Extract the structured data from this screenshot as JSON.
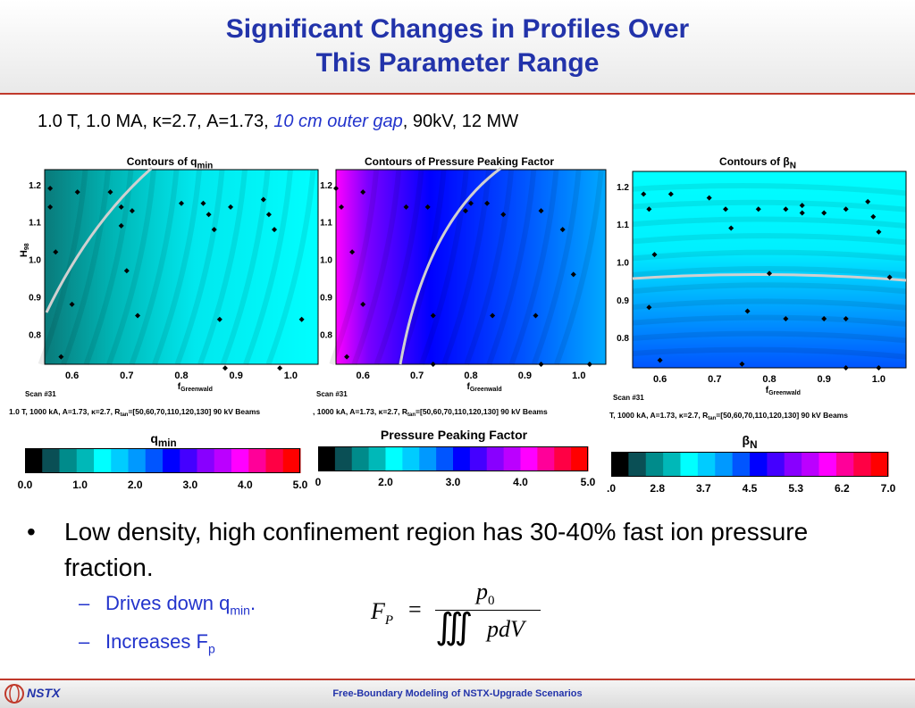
{
  "slide": {
    "title_line1": "Significant Changes in Profiles Over",
    "title_line2": "This Parameter Range",
    "subtitle_part1": "1.0 T, 1.0 MA, κ=2.7, A=1.73, ",
    "subtitle_italic": "10 cm outer gap",
    "subtitle_part2": ", 90kV, 12 MW"
  },
  "bullets": {
    "main": "Low density, high confinement region has 30-40% fast ion pressure fraction.",
    "sub1_text": "Drives down q",
    "sub1_sub": "min",
    "sub1_end": ".",
    "sub2_text": "Increases F",
    "sub2_sub": "p"
  },
  "formula": {
    "lhs": "F",
    "lhs_sub": "P",
    "equals": "=",
    "numerator": "p",
    "numerator_sub": "0",
    "denominator": "pdV",
    "integral": "∭"
  },
  "footer": {
    "text": "Free-Boundary Modeling of NSTX-Upgrade Scenarios",
    "logo_text": "NSTX"
  },
  "colors": {
    "title": "#2233aa",
    "accent_red": "#c0392b",
    "colorbar": [
      "#000000",
      "#0a4f55",
      "#008b8b",
      "#00b8b8",
      "#00ffff",
      "#00ccff",
      "#0099ff",
      "#0055ff",
      "#0000ff",
      "#4400ff",
      "#8800ff",
      "#bb00ff",
      "#ff00ff",
      "#ff0099",
      "#ff0044",
      "#ff0000"
    ]
  },
  "chart_data": [
    {
      "type": "heatmap",
      "title_main": "Contours of q",
      "title_sub": "min",
      "xlabel": "f",
      "xlabel_sub": "Greenwald",
      "ylabel": "H",
      "ylabel_sub": "98",
      "xlim": [
        0.55,
        1.05
      ],
      "ylim": [
        0.72,
        1.24
      ],
      "xticks": [
        "0.6",
        "0.7",
        "0.8",
        "0.9",
        "1.0"
      ],
      "yticks": [
        "0.8",
        "0.9",
        "1.0",
        "1.1",
        "1.2"
      ],
      "scan_label": "Scan #31",
      "caption": "1.0 T, 1000 kA, A=1.73, κ=2.7, R",
      "caption_sub": "tan",
      "caption_end": "=[50,60,70,110,120,130] 90 kV Beams",
      "colorbar_label": "q",
      "colorbar_label_sub": "min",
      "colorbar_ticks": [
        "0.0",
        "1.0",
        "2.0",
        "3.0",
        "4.0",
        "5.0"
      ],
      "points": [
        [
          0.56,
          1.19
        ],
        [
          0.61,
          1.18
        ],
        [
          0.56,
          1.14
        ],
        [
          0.57,
          1.02
        ],
        [
          0.6,
          0.88
        ],
        [
          0.58,
          0.74
        ],
        [
          0.67,
          1.18
        ],
        [
          0.69,
          1.14
        ],
        [
          0.71,
          1.13
        ],
        [
          0.69,
          1.09
        ],
        [
          0.7,
          0.97
        ],
        [
          0.72,
          0.85
        ],
        [
          0.8,
          1.15
        ],
        [
          0.84,
          1.15
        ],
        [
          0.85,
          1.12
        ],
        [
          0.86,
          1.08
        ],
        [
          0.89,
          1.14
        ],
        [
          0.95,
          1.16
        ],
        [
          0.96,
          1.12
        ],
        [
          0.97,
          1.08
        ],
        [
          0.87,
          0.84
        ],
        [
          0.88,
          0.71
        ],
        [
          0.98,
          0.71
        ],
        [
          1.02,
          0.84
        ]
      ]
    },
    {
      "type": "heatmap",
      "title_main": "Contours of Pressure Peaking Factor",
      "xlabel": "f",
      "xlabel_sub": "Greenwald",
      "xlim": [
        0.55,
        1.05
      ],
      "ylim": [
        0.72,
        1.24
      ],
      "xticks": [
        "0.6",
        "0.7",
        "0.8",
        "0.9",
        "1.0"
      ],
      "yticks": [
        "0.8",
        "0.9",
        "1.0",
        "1.1",
        "1.2"
      ],
      "scan_label": "Scan #31",
      "caption": ", 1000 kA, A=1.73, κ=2.7, R",
      "caption_sub": "tan",
      "caption_end": "=[50,60,70,110,120,130] 90 kV Beams",
      "colorbar_label": "Pressure Peaking Factor",
      "colorbar_ticks": [
        "0",
        "2.0",
        "3.0",
        "4.0",
        "5.0"
      ],
      "points": [
        [
          0.55,
          1.19
        ],
        [
          0.6,
          1.18
        ],
        [
          0.56,
          1.14
        ],
        [
          0.58,
          1.02
        ],
        [
          0.6,
          0.88
        ],
        [
          0.57,
          0.74
        ],
        [
          0.68,
          1.14
        ],
        [
          0.72,
          1.14
        ],
        [
          0.79,
          1.13
        ],
        [
          0.8,
          1.15
        ],
        [
          0.83,
          1.15
        ],
        [
          0.86,
          1.12
        ],
        [
          0.93,
          1.13
        ],
        [
          0.97,
          1.08
        ],
        [
          0.99,
          0.96
        ],
        [
          0.73,
          0.85
        ],
        [
          0.84,
          0.85
        ],
        [
          0.73,
          0.72
        ],
        [
          0.92,
          0.85
        ],
        [
          0.93,
          0.72
        ],
        [
          1.02,
          0.72
        ]
      ]
    },
    {
      "type": "heatmap",
      "title_main": "Contours of β",
      "title_sub": "N",
      "xlabel": "f",
      "xlabel_sub": "Greenwald",
      "xlim": [
        0.55,
        1.05
      ],
      "ylim": [
        0.72,
        1.24
      ],
      "xticks": [
        "0.6",
        "0.7",
        "0.8",
        "0.9",
        "1.0"
      ],
      "yticks": [
        "0.8",
        "0.9",
        "1.0",
        "1.1",
        "1.2"
      ],
      "scan_label": "Scan #31",
      "caption": "T, 1000 kA, A=1.73, κ=2.7, R",
      "caption_sub": "tan",
      "caption_end": "=[50,60,70,110,120,130] 90 kV Beams",
      "colorbar_label": "β",
      "colorbar_label_sub": "N",
      "colorbar_ticks": [
        ".0",
        "2.8",
        "3.7",
        "4.5",
        "5.3",
        "6.2",
        "7.0"
      ],
      "points": [
        [
          0.57,
          1.18
        ],
        [
          0.62,
          1.18
        ],
        [
          0.58,
          1.14
        ],
        [
          0.59,
          1.02
        ],
        [
          0.58,
          0.88
        ],
        [
          0.6,
          0.74
        ],
        [
          0.69,
          1.17
        ],
        [
          0.72,
          1.14
        ],
        [
          0.73,
          1.09
        ],
        [
          0.78,
          1.14
        ],
        [
          0.83,
          1.14
        ],
        [
          0.86,
          1.15
        ],
        [
          0.86,
          1.13
        ],
        [
          0.9,
          1.13
        ],
        [
          0.94,
          1.14
        ],
        [
          0.98,
          1.16
        ],
        [
          0.99,
          1.12
        ],
        [
          1.0,
          1.08
        ],
        [
          0.76,
          0.87
        ],
        [
          0.83,
          0.85
        ],
        [
          0.9,
          0.85
        ],
        [
          0.94,
          0.85
        ],
        [
          0.75,
          0.73
        ],
        [
          0.94,
          0.72
        ],
        [
          1.0,
          0.72
        ],
        [
          1.02,
          0.96
        ],
        [
          0.8,
          0.97
        ]
      ]
    }
  ]
}
